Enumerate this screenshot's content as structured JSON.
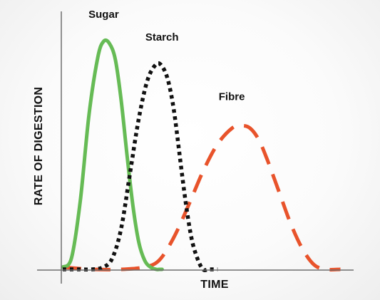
{
  "chart_data": {
    "type": "line",
    "title": "",
    "xlabel": "TIME",
    "ylabel": "RATE OF DIGESTION",
    "x_ticks": false,
    "y_ticks": false,
    "grid": false,
    "legend": "none (series labelled directly above their peaks)",
    "xlim": [
      0,
      100
    ],
    "ylim": [
      0,
      100
    ],
    "series": [
      {
        "name": "Sugar",
        "color": "#66bb55",
        "line_style": "solid",
        "x": [
          0,
          3,
          6,
          9,
          12,
          14,
          16,
          18,
          20,
          22,
          24,
          26,
          28,
          30,
          32,
          33,
          34
        ],
        "y": [
          1,
          5,
          30,
          68,
          93,
          100,
          99,
          92,
          74,
          50,
          28,
          12,
          4,
          1,
          0,
          0,
          0
        ]
      },
      {
        "name": "Starch",
        "color": "#111111",
        "line_style": "dotted",
        "x": [
          0,
          5,
          10,
          14,
          17,
          20,
          23,
          26,
          29,
          32,
          34,
          36,
          38,
          40,
          42,
          44,
          46,
          48,
          50,
          53
        ],
        "y": [
          0,
          0,
          0,
          1,
          5,
          18,
          42,
          66,
          83,
          90,
          89,
          83,
          70,
          50,
          30,
          14,
          5,
          0,
          0,
          0
        ]
      },
      {
        "name": "Fibre",
        "color": "#e8532b",
        "line_style": "dashed",
        "x": [
          0,
          10,
          20,
          28,
          33,
          38,
          43,
          48,
          53,
          58,
          61,
          64,
          67,
          70,
          74,
          78,
          82,
          86,
          90,
          95
        ],
        "y": [
          1,
          0,
          0,
          1,
          4,
          14,
          28,
          43,
          55,
          62,
          63,
          62,
          57,
          48,
          34,
          20,
          9,
          2,
          0,
          0
        ]
      }
    ]
  }
}
